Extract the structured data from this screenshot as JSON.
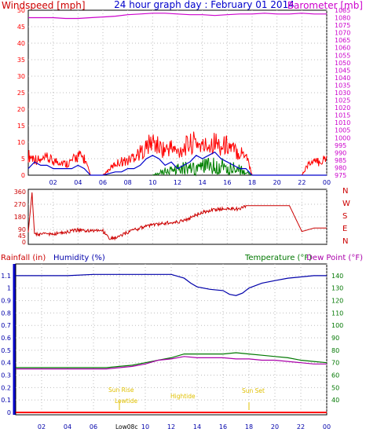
{
  "colors": {
    "wind": "#ff0000",
    "gust_blue": "#0000cc",
    "gust_green": "#008000",
    "barometer": "#cc00cc",
    "direction": "#cc0000",
    "rain": "#ff0000",
    "humidity": "#0000aa",
    "temperature": "#007700",
    "dewpoint": "#aa00aa",
    "annotation": "#e0c000",
    "temp_title": "#008000",
    "grid": "#bdbdbd"
  },
  "chart_data": [
    {
      "type": "line",
      "title": "24 hour graph day : February 01 2014",
      "left_label": "Windspeed [mph]",
      "right_label": "Barometer [mb]",
      "x_ticks": [
        "02",
        "04",
        "06",
        "08",
        "10",
        "12",
        "14",
        "16",
        "18",
        "20",
        "22",
        "00"
      ],
      "y_left_ticks": [
        0,
        5,
        10,
        15,
        20,
        25,
        30,
        35,
        40,
        45,
        50
      ],
      "y_left_range": [
        0,
        50
      ],
      "y_right_ticks": [
        975,
        980,
        985,
        990,
        995,
        1000,
        1005,
        1010,
        1015,
        1020,
        1025,
        1030,
        1035,
        1040,
        1045,
        1050,
        1055,
        1060,
        1065,
        1070,
        1075,
        1080,
        1085
      ],
      "y_right_range": [
        975,
        1085
      ],
      "x_range": [
        0,
        24
      ],
      "series": [
        {
          "key": "barometer",
          "x": [
            0,
            1,
            2,
            3,
            4,
            5,
            6,
            7,
            8,
            9,
            10,
            11,
            12,
            13,
            14,
            15,
            16,
            17,
            18,
            19,
            20,
            21,
            22,
            23,
            24
          ],
          "values": [
            1080,
            1080,
            1080,
            1079.5,
            1079.5,
            1080,
            1080.5,
            1081,
            1082,
            1082.5,
            1083,
            1083,
            1082.5,
            1082,
            1082,
            1081.5,
            1082,
            1082.5,
            1082.5,
            1083,
            1082.5,
            1082.5,
            1083,
            1082.5,
            1082.5
          ]
        },
        {
          "key": "wind_avg",
          "x": [
            0,
            0.5,
            1,
            1.5,
            2,
            2.5,
            3,
            3.5,
            4,
            4.5,
            5,
            6,
            7,
            7.5,
            8,
            8.5,
            9,
            9.5,
            10,
            10.5,
            11,
            11.5,
            12,
            12.5,
            13,
            13.5,
            14,
            14.5,
            15,
            15.5,
            16,
            16.5,
            17,
            17.5,
            18,
            24
          ],
          "values": [
            2,
            4,
            3,
            3,
            2,
            2,
            2,
            2,
            3,
            2,
            0,
            0,
            1,
            1,
            2,
            2,
            3,
            5,
            6,
            5,
            3,
            4,
            2,
            3,
            4,
            6,
            5,
            6,
            7,
            5,
            4,
            3,
            2,
            2,
            0,
            0
          ]
        },
        {
          "key": "wind_gust_env",
          "x": [
            0,
            0.5,
            1,
            1.5,
            2,
            2.5,
            3,
            3.5,
            4,
            4.5,
            5,
            6,
            7,
            7.5,
            8,
            8.5,
            9,
            9.5,
            10,
            10.5,
            11,
            11.5,
            12,
            12.5,
            13,
            13.5,
            14,
            14.5,
            15,
            15.5,
            16,
            16.5,
            17,
            17.5,
            18,
            22,
            22.5,
            23.5,
            24
          ],
          "values": [
            7,
            6,
            5,
            6,
            5,
            5,
            4,
            5,
            7,
            6,
            0,
            0,
            4,
            5,
            5,
            7,
            8,
            10,
            12,
            10,
            9,
            10,
            8,
            10,
            11,
            12,
            10,
            11,
            12,
            10,
            11,
            9,
            8,
            8,
            0,
            0,
            4,
            5,
            6
          ]
        },
        {
          "key": "wind_green",
          "x": [
            10,
            11,
            12,
            13,
            14,
            15,
            16,
            17,
            18
          ],
          "values": [
            0,
            2,
            3,
            4,
            4,
            5,
            4,
            3,
            0
          ]
        }
      ]
    },
    {
      "type": "line",
      "title": "",
      "right_labels": [
        "N",
        "W",
        "S",
        "E",
        "N"
      ],
      "y_ticks": [
        0,
        45,
        90,
        135,
        180,
        225,
        270,
        315,
        360
      ],
      "y_range": [
        0,
        360
      ],
      "x_range": [
        0,
        24
      ],
      "series": [
        {
          "key": "wind_direction",
          "x": [
            0,
            0.3,
            0.5,
            0.6,
            1,
            2,
            3,
            3.5,
            4,
            5,
            6,
            6.5,
            7,
            8,
            9,
            10,
            11,
            12,
            12.5,
            13,
            14,
            15,
            16,
            17,
            17.5,
            20,
            21,
            22,
            23,
            24
          ],
          "values": [
            70,
            355,
            60,
            60,
            55,
            60,
            70,
            80,
            85,
            80,
            80,
            20,
            30,
            70,
            100,
            125,
            135,
            145,
            150,
            170,
            215,
            230,
            240,
            235,
            260,
            260,
            260,
            75,
            100,
            100
          ]
        }
      ]
    },
    {
      "type": "line",
      "title": "",
      "rain_label": "Rainfall (in)",
      "humidity_label": "Humidity (%)",
      "temp_label": "Temperature (°F)",
      "dewpoint_label": "Dew Point (°F)",
      "y_left_ticks": [
        0,
        0.1,
        0.2,
        0.3,
        0.4,
        0.5,
        0.6,
        0.7,
        0.8,
        0.9,
        1,
        1.1
      ],
      "y_left_range": [
        0,
        1.15
      ],
      "y_right_ticks": [
        40,
        50,
        60,
        70,
        80,
        90,
        100,
        110,
        120,
        130,
        140
      ],
      "y_right_range": [
        30,
        145
      ],
      "x_ticks": [
        "02",
        "04",
        "06",
        "08",
        "10",
        "12",
        "14",
        "16",
        "18",
        "20",
        "22",
        "00"
      ],
      "x_range": [
        0,
        24
      ],
      "annotations": [
        "Sun Rise",
        "Lowtide",
        "Low08c",
        "Hightide",
        "Sun Set"
      ],
      "series": [
        {
          "key": "humidity",
          "x": [
            0,
            2,
            4,
            6,
            7,
            8,
            9,
            10,
            11,
            12,
            13,
            13.5,
            14,
            15,
            16,
            16.5,
            17,
            17.5,
            18,
            19,
            20,
            21,
            22,
            23,
            24
          ],
          "values": [
            140,
            140,
            140,
            141,
            141,
            141,
            141,
            141,
            141,
            141,
            138,
            134,
            131,
            129,
            128,
            125,
            124,
            126,
            130,
            134,
            136,
            138,
            139,
            140,
            140
          ]
        },
        {
          "key": "temperature",
          "x": [
            0,
            2,
            4,
            6,
            7,
            8,
            9,
            10,
            11,
            12,
            13,
            14,
            15,
            16,
            17,
            18,
            19,
            20,
            21,
            22,
            23,
            24
          ],
          "values": [
            66,
            66,
            66,
            66,
            66,
            67,
            68,
            70,
            72,
            74,
            77,
            77,
            77,
            77,
            78,
            77,
            76,
            75,
            74,
            72,
            71,
            70
          ]
        },
        {
          "key": "dewpoint",
          "x": [
            0,
            2,
            4,
            6,
            7,
            8,
            9,
            10,
            11,
            12,
            13,
            14,
            15,
            16,
            17,
            18,
            19,
            20,
            21,
            22,
            23,
            24
          ],
          "values": [
            65,
            65,
            65,
            65,
            65,
            66,
            67,
            69,
            72,
            73,
            75,
            74,
            74,
            74,
            73,
            73,
            72,
            72,
            71,
            70,
            69,
            69
          ]
        },
        {
          "key": "rain",
          "x": [
            0,
            24
          ],
          "values": [
            0,
            0
          ]
        }
      ]
    }
  ]
}
